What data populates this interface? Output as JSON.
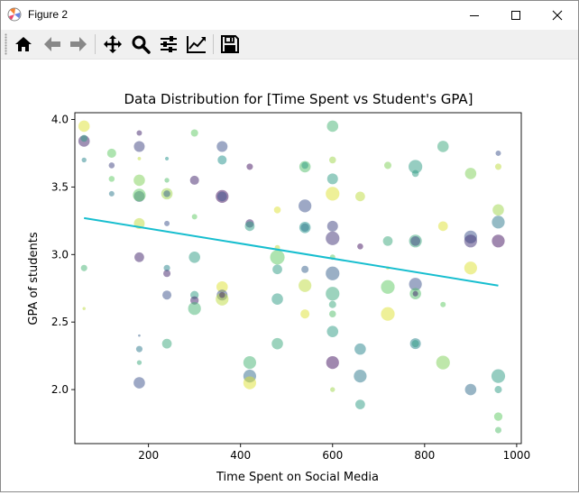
{
  "window": {
    "title": "Figure 2",
    "app_icon": "matplotlib-icon",
    "controls": [
      "minimize-icon",
      "maximize-icon",
      "close-icon"
    ]
  },
  "toolbar": {
    "buttons": [
      "home-icon",
      "back-arrow-icon",
      "forward-arrow-icon",
      "pan-move-icon",
      "zoom-magnifier-icon",
      "configure-subplots-icon",
      "edit-axis-icon",
      "save-disk-icon"
    ]
  },
  "chart_data": {
    "type": "scatter",
    "title": "Data Distribution for [Time Spent vs Student's GPA]",
    "xlabel": "Time Spent on Social Media",
    "ylabel": "GPA of students",
    "xlim": [
      40,
      1010
    ],
    "ylim": [
      1.6,
      4.05
    ],
    "xticks": [
      200,
      400,
      600,
      800,
      1000
    ],
    "yticks": [
      2.0,
      2.5,
      3.0,
      3.5,
      4.0
    ],
    "ytick_labels": [
      "2.0",
      "2.5",
      "3.0",
      "3.5",
      "4.0"
    ],
    "grid": false,
    "regression_line": {
      "x": [
        60,
        960
      ],
      "y": [
        3.27,
        2.77
      ],
      "color": "#17becf"
    },
    "point_colormap": "viridis",
    "point_alpha": 0.5,
    "points": [
      {
        "x": 60,
        "y": 3.95,
        "s": 110,
        "c": 0.95
      },
      {
        "x": 60,
        "y": 3.84,
        "s": 110,
        "c": 0.1
      },
      {
        "x": 60,
        "y": 3.86,
        "s": 40,
        "c": 0.55
      },
      {
        "x": 60,
        "y": 3.7,
        "s": 20,
        "c": 0.45
      },
      {
        "x": 60,
        "y": 2.9,
        "s": 35,
        "c": 0.65
      },
      {
        "x": 60,
        "y": 2.6,
        "s": 8,
        "c": 0.9
      },
      {
        "x": 120,
        "y": 3.75,
        "s": 70,
        "c": 0.75
      },
      {
        "x": 120,
        "y": 3.66,
        "s": 30,
        "c": 0.2
      },
      {
        "x": 120,
        "y": 3.56,
        "s": 30,
        "c": 0.75
      },
      {
        "x": 120,
        "y": 3.45,
        "s": 25,
        "c": 0.4
      },
      {
        "x": 180,
        "y": 3.9,
        "s": 25,
        "c": 0.1
      },
      {
        "x": 180,
        "y": 3.8,
        "s": 100,
        "c": 0.2
      },
      {
        "x": 180,
        "y": 3.71,
        "s": 10,
        "c": 0.9
      },
      {
        "x": 180,
        "y": 3.55,
        "s": 110,
        "c": 0.8
      },
      {
        "x": 180,
        "y": 3.43,
        "s": 100,
        "c": 0.25
      },
      {
        "x": 180,
        "y": 3.44,
        "s": 140,
        "c": 0.75
      },
      {
        "x": 180,
        "y": 3.23,
        "s": 100,
        "c": 0.9
      },
      {
        "x": 180,
        "y": 2.98,
        "s": 80,
        "c": 0.1
      },
      {
        "x": 180,
        "y": 2.4,
        "s": 5,
        "c": 0.3
      },
      {
        "x": 180,
        "y": 2.3,
        "s": 35,
        "c": 0.4
      },
      {
        "x": 180,
        "y": 2.2,
        "s": 20,
        "c": 0.6
      },
      {
        "x": 180,
        "y": 2.05,
        "s": 110,
        "c": 0.25
      },
      {
        "x": 240,
        "y": 3.71,
        "s": 12,
        "c": 0.5
      },
      {
        "x": 240,
        "y": 3.55,
        "s": 20,
        "c": 0.7
      },
      {
        "x": 240,
        "y": 3.45,
        "s": 110,
        "c": 0.85
      },
      {
        "x": 240,
        "y": 3.45,
        "s": 40,
        "c": 0.3
      },
      {
        "x": 240,
        "y": 3.23,
        "s": 25,
        "c": 0.25
      },
      {
        "x": 240,
        "y": 2.9,
        "s": 35,
        "c": 0.45
      },
      {
        "x": 240,
        "y": 2.86,
        "s": 45,
        "c": 0.1
      },
      {
        "x": 240,
        "y": 2.7,
        "s": 70,
        "c": 0.25
      },
      {
        "x": 240,
        "y": 2.34,
        "s": 80,
        "c": 0.6
      },
      {
        "x": 300,
        "y": 3.9,
        "s": 45,
        "c": 0.75
      },
      {
        "x": 300,
        "y": 3.55,
        "s": 70,
        "c": 0.1
      },
      {
        "x": 300,
        "y": 3.28,
        "s": 25,
        "c": 0.75
      },
      {
        "x": 300,
        "y": 2.98,
        "s": 110,
        "c": 0.55
      },
      {
        "x": 300,
        "y": 2.7,
        "s": 60,
        "c": 0.55
      },
      {
        "x": 300,
        "y": 2.66,
        "s": 60,
        "c": 0.1
      },
      {
        "x": 300,
        "y": 2.6,
        "s": 140,
        "c": 0.65
      },
      {
        "x": 360,
        "y": 3.8,
        "s": 100,
        "c": 0.25
      },
      {
        "x": 360,
        "y": 3.7,
        "s": 70,
        "c": 0.5
      },
      {
        "x": 360,
        "y": 3.43,
        "s": 140,
        "c": 0.05
      },
      {
        "x": 360,
        "y": 3.43,
        "s": 80,
        "c": 0.25
      },
      {
        "x": 360,
        "y": 2.76,
        "s": 110,
        "c": 0.95
      },
      {
        "x": 360,
        "y": 2.7,
        "s": 100,
        "c": 0.25
      },
      {
        "x": 360,
        "y": 2.67,
        "s": 140,
        "c": 0.9
      },
      {
        "x": 360,
        "y": 2.7,
        "s": 30,
        "c": 0.1
      },
      {
        "x": 420,
        "y": 3.65,
        "s": 35,
        "c": 0.05
      },
      {
        "x": 420,
        "y": 3.23,
        "s": 60,
        "c": 0.1
      },
      {
        "x": 420,
        "y": 3.21,
        "s": 80,
        "c": 0.55
      },
      {
        "x": 420,
        "y": 2.2,
        "s": 140,
        "c": 0.65
      },
      {
        "x": 420,
        "y": 2.1,
        "s": 140,
        "c": 0.35
      },
      {
        "x": 420,
        "y": 2.05,
        "s": 140,
        "c": 0.95
      },
      {
        "x": 480,
        "y": 3.33,
        "s": 40,
        "c": 0.95
      },
      {
        "x": 480,
        "y": 3.05,
        "s": 25,
        "c": 0.9
      },
      {
        "x": 480,
        "y": 2.98,
        "s": 180,
        "c": 0.75
      },
      {
        "x": 480,
        "y": 2.89,
        "s": 80,
        "c": 0.55
      },
      {
        "x": 480,
        "y": 2.67,
        "s": 110,
        "c": 0.55
      },
      {
        "x": 480,
        "y": 2.34,
        "s": 110,
        "c": 0.6
      },
      {
        "x": 540,
        "y": 3.65,
        "s": 110,
        "c": 0.7
      },
      {
        "x": 540,
        "y": 3.66,
        "s": 40,
        "c": 0.55
      },
      {
        "x": 540,
        "y": 3.36,
        "s": 140,
        "c": 0.25
      },
      {
        "x": 540,
        "y": 3.2,
        "s": 110,
        "c": 0.5
      },
      {
        "x": 540,
        "y": 3.2,
        "s": 60,
        "c": 0.4
      },
      {
        "x": 540,
        "y": 2.89,
        "s": 45,
        "c": 0.3
      },
      {
        "x": 540,
        "y": 2.77,
        "s": 140,
        "c": 0.9
      },
      {
        "x": 540,
        "y": 2.56,
        "s": 70,
        "c": 0.95
      },
      {
        "x": 600,
        "y": 3.95,
        "s": 110,
        "c": 0.65
      },
      {
        "x": 600,
        "y": 3.7,
        "s": 40,
        "c": 0.85
      },
      {
        "x": 600,
        "y": 3.56,
        "s": 100,
        "c": 0.55
      },
      {
        "x": 600,
        "y": 3.45,
        "s": 160,
        "c": 0.95
      },
      {
        "x": 600,
        "y": 3.21,
        "s": 100,
        "c": 0.2
      },
      {
        "x": 600,
        "y": 3.12,
        "s": 160,
        "c": 0.15
      },
      {
        "x": 600,
        "y": 2.98,
        "s": 25,
        "c": 0.75
      },
      {
        "x": 600,
        "y": 2.86,
        "s": 160,
        "c": 0.3
      },
      {
        "x": 600,
        "y": 2.71,
        "s": 160,
        "c": 0.6
      },
      {
        "x": 600,
        "y": 2.63,
        "s": 45,
        "c": 0.6
      },
      {
        "x": 600,
        "y": 2.56,
        "s": 40,
        "c": 0.7
      },
      {
        "x": 600,
        "y": 2.43,
        "s": 110,
        "c": 0.55
      },
      {
        "x": 600,
        "y": 2.2,
        "s": 140,
        "c": 0.05
      },
      {
        "x": 600,
        "y": 2.0,
        "s": 20,
        "c": 0.85
      },
      {
        "x": 660,
        "y": 3.43,
        "s": 80,
        "c": 0.9
      },
      {
        "x": 660,
        "y": 3.06,
        "s": 30,
        "c": 0.05
      },
      {
        "x": 660,
        "y": 2.3,
        "s": 110,
        "c": 0.45
      },
      {
        "x": 660,
        "y": 2.1,
        "s": 140,
        "c": 0.4
      },
      {
        "x": 660,
        "y": 1.89,
        "s": 80,
        "c": 0.55
      },
      {
        "x": 720,
        "y": 3.66,
        "s": 45,
        "c": 0.8
      },
      {
        "x": 720,
        "y": 3.1,
        "s": 80,
        "c": 0.6
      },
      {
        "x": 720,
        "y": 2.9,
        "s": 10,
        "c": 0.95
      },
      {
        "x": 720,
        "y": 2.76,
        "s": 160,
        "c": 0.75
      },
      {
        "x": 720,
        "y": 2.56,
        "s": 160,
        "c": 0.95
      },
      {
        "x": 780,
        "y": 3.65,
        "s": 160,
        "c": 0.55
      },
      {
        "x": 780,
        "y": 3.6,
        "s": 40,
        "c": 0.55
      },
      {
        "x": 780,
        "y": 3.1,
        "s": 140,
        "c": 0.6
      },
      {
        "x": 780,
        "y": 3.1,
        "s": 80,
        "c": 0.2
      },
      {
        "x": 780,
        "y": 2.78,
        "s": 140,
        "c": 0.25
      },
      {
        "x": 780,
        "y": 2.71,
        "s": 110,
        "c": 0.7
      },
      {
        "x": 780,
        "y": 2.71,
        "s": 25,
        "c": 0.1
      },
      {
        "x": 780,
        "y": 2.34,
        "s": 100,
        "c": 0.45
      },
      {
        "x": 780,
        "y": 2.34,
        "s": 45,
        "c": 0.55
      },
      {
        "x": 840,
        "y": 3.8,
        "s": 110,
        "c": 0.6
      },
      {
        "x": 840,
        "y": 3.21,
        "s": 80,
        "c": 0.95
      },
      {
        "x": 840,
        "y": 2.63,
        "s": 25,
        "c": 0.75
      },
      {
        "x": 840,
        "y": 2.2,
        "s": 160,
        "c": 0.8
      },
      {
        "x": 900,
        "y": 3.6,
        "s": 110,
        "c": 0.8
      },
      {
        "x": 900,
        "y": 3.13,
        "s": 140,
        "c": 0.25
      },
      {
        "x": 900,
        "y": 3.1,
        "s": 140,
        "c": 0.15
      },
      {
        "x": 900,
        "y": 2.9,
        "s": 140,
        "c": 0.95
      },
      {
        "x": 900,
        "y": 2.0,
        "s": 110,
        "c": 0.35
      },
      {
        "x": 960,
        "y": 3.75,
        "s": 25,
        "c": 0.25
      },
      {
        "x": 960,
        "y": 3.65,
        "s": 35,
        "c": 0.9
      },
      {
        "x": 960,
        "y": 3.33,
        "s": 110,
        "c": 0.85
      },
      {
        "x": 960,
        "y": 3.24,
        "s": 140,
        "c": 0.4
      },
      {
        "x": 960,
        "y": 3.1,
        "s": 140,
        "c": 0.05
      },
      {
        "x": 960,
        "y": 2.1,
        "s": 160,
        "c": 0.55
      },
      {
        "x": 960,
        "y": 2.0,
        "s": 45,
        "c": 0.55
      },
      {
        "x": 960,
        "y": 1.8,
        "s": 60,
        "c": 0.75
      },
      {
        "x": 960,
        "y": 1.7,
        "s": 35,
        "c": 0.7
      }
    ]
  }
}
